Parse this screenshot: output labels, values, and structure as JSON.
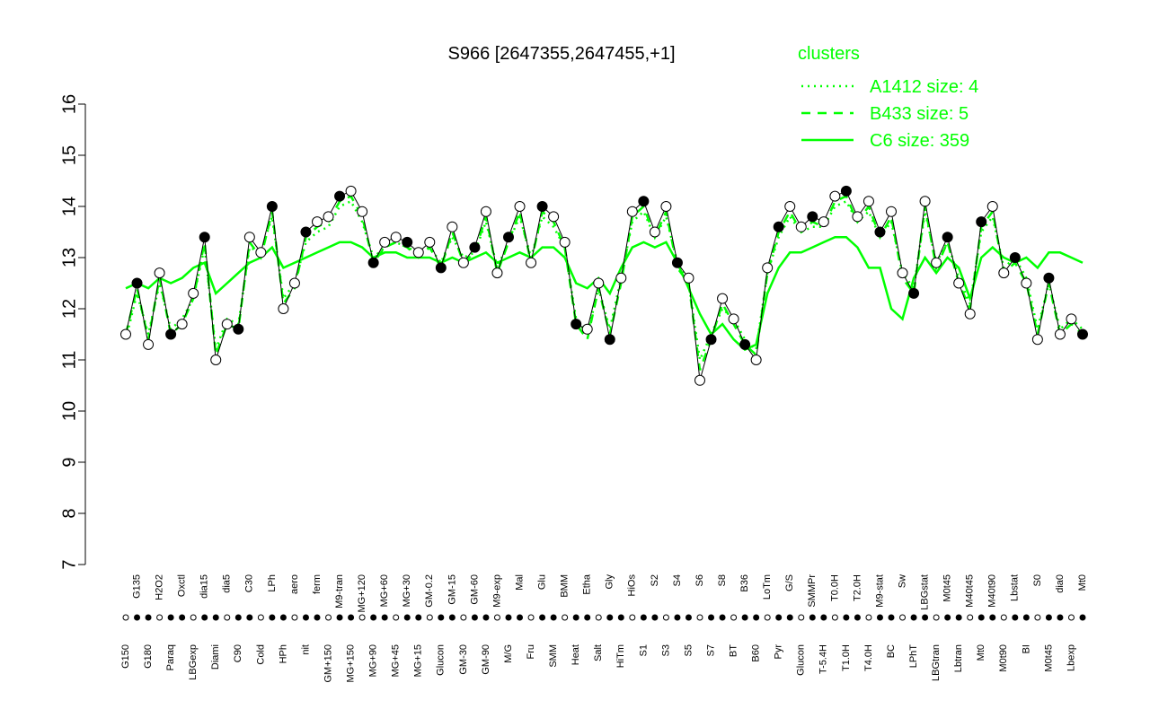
{
  "chart_data": {
    "type": "line",
    "title": "S966 [2647355,2647455,+1]",
    "legend_title": "clusters",
    "legend_color": "#00ff00",
    "ylim": [
      7,
      16
    ],
    "yticks": [
      7,
      8,
      9,
      10,
      11,
      12,
      13,
      14,
      15,
      16
    ],
    "categories": [
      "G150",
      "G135",
      "G180",
      "H2O2",
      "Paraq",
      "Oxctl",
      "LBGexp",
      "dia15",
      "Diami",
      "dia5",
      "C90",
      "C30",
      "Cold",
      "LPh",
      "HPh",
      "aero",
      "nit",
      "ferm",
      "GM+150",
      "M9-tran",
      "MG+150",
      "MG+120",
      "MG+90",
      "MG+60",
      "MG+45",
      "MG+30",
      "MG+15",
      "GM-0.2",
      "Glucon",
      "GM-15",
      "GM-30",
      "GM-60",
      "GM-90",
      "M9-exp",
      "M/G",
      "Mal",
      "Fru",
      "Glu",
      "SMM",
      "BMM",
      "Heat",
      "Etha",
      "Salt",
      "Gly",
      "HiTm",
      "HiOs",
      "S1",
      "S2",
      "S3",
      "S4",
      "S5",
      "S6",
      "S7",
      "S8",
      "BT",
      "B36",
      "B60",
      "LoTm",
      "Pyr",
      "G/S",
      "Glucon",
      "SMMPr",
      "T-5.4H",
      "T0.0H",
      "T1.0H",
      "T2.0H",
      "T4.0H",
      "M9-stat",
      "BC",
      "Sw",
      "LPhT",
      "LBGstat",
      "LBGtran",
      "M0t45",
      "Lbtran",
      "M40t45",
      "Mt0",
      "M40t90",
      "M0t90",
      "Lbstat",
      "BI",
      "S0",
      "M0t45",
      "dia0",
      "Lbexp",
      "Mt0"
    ],
    "values": [
      11.5,
      12.5,
      11.3,
      12.7,
      11.5,
      11.7,
      12.3,
      13.4,
      11.0,
      11.7,
      11.6,
      13.4,
      13.1,
      14.0,
      12.0,
      12.5,
      13.5,
      13.7,
      13.8,
      14.2,
      14.3,
      13.9,
      12.9,
      13.3,
      13.4,
      13.3,
      13.1,
      13.3,
      12.8,
      13.6,
      12.9,
      13.2,
      13.9,
      12.7,
      13.4,
      14.0,
      12.9,
      14.0,
      13.8,
      13.3,
      11.7,
      11.6,
      12.5,
      11.4,
      12.6,
      13.9,
      14.1,
      13.5,
      14.0,
      12.9,
      12.6,
      10.6,
      11.4,
      12.2,
      11.8,
      11.3,
      11.0,
      12.8,
      13.6,
      14.0,
      13.6,
      13.8,
      13.7,
      14.2,
      14.3,
      13.8,
      14.1,
      13.5,
      13.9,
      12.7,
      12.3,
      14.1,
      12.9,
      13.4,
      12.5,
      11.9,
      13.7,
      14.0,
      12.7,
      13.0,
      12.5,
      11.4,
      12.6,
      11.5,
      11.8,
      11.5
    ],
    "point_color": "#000000",
    "series": [
      {
        "name": "A1412 size: 4",
        "color": "#00ff00",
        "style": "dotted",
        "values": [
          11.4,
          12.3,
          11.5,
          12.5,
          11.6,
          11.8,
          12.2,
          13.2,
          11.2,
          11.8,
          11.7,
          13.2,
          13.1,
          13.8,
          12.2,
          12.5,
          13.3,
          13.5,
          13.6,
          14.0,
          14.1,
          13.7,
          13.0,
          13.2,
          13.3,
          13.2,
          13.1,
          13.2,
          12.9,
          13.4,
          13.0,
          13.1,
          13.7,
          12.8,
          13.3,
          13.8,
          13.0,
          13.8,
          13.6,
          13.2,
          11.8,
          11.5,
          12.4,
          11.6,
          12.6,
          13.7,
          13.9,
          13.4,
          13.8,
          12.9,
          12.5,
          11.0,
          11.5,
          12.0,
          11.8,
          11.4,
          11.2,
          12.7,
          13.4,
          13.8,
          13.5,
          13.6,
          13.6,
          14.0,
          14.1,
          13.7,
          13.9,
          13.4,
          13.7,
          12.7,
          12.4,
          13.9,
          12.9,
          13.3,
          12.6,
          12.1,
          13.5,
          13.8,
          12.8,
          13.0,
          12.6,
          11.6,
          12.5,
          11.6,
          11.8,
          11.6
        ]
      },
      {
        "name": "B433 size: 5",
        "color": "#00ff00",
        "style": "dashed",
        "values": [
          11.5,
          12.4,
          11.4,
          12.6,
          11.5,
          11.7,
          12.2,
          13.3,
          11.1,
          11.7,
          11.6,
          13.3,
          13.0,
          13.9,
          12.1,
          12.4,
          13.4,
          13.6,
          13.7,
          14.1,
          14.2,
          13.8,
          12.9,
          13.2,
          13.3,
          13.2,
          13.0,
          13.2,
          12.8,
          13.5,
          12.9,
          13.1,
          13.8,
          12.7,
          13.3,
          13.9,
          12.9,
          13.9,
          13.7,
          13.2,
          11.7,
          11.4,
          12.4,
          11.5,
          12.5,
          13.8,
          14.0,
          13.4,
          13.9,
          12.8,
          12.5,
          10.8,
          11.4,
          12.1,
          11.7,
          11.3,
          11.1,
          12.7,
          13.5,
          13.9,
          13.5,
          13.7,
          13.6,
          14.1,
          14.2,
          13.7,
          14.0,
          13.4,
          13.8,
          12.6,
          12.3,
          14.0,
          12.8,
          13.3,
          12.5,
          12.0,
          13.6,
          13.9,
          12.7,
          12.9,
          12.5,
          11.5,
          12.5,
          11.5,
          11.7,
          11.5
        ]
      },
      {
        "name": "C6 size: 359",
        "color": "#00ff00",
        "style": "solid",
        "values": [
          12.4,
          12.5,
          12.4,
          12.6,
          12.5,
          12.6,
          12.8,
          12.9,
          12.3,
          12.5,
          12.7,
          12.9,
          13.0,
          13.2,
          12.8,
          12.9,
          13.0,
          13.1,
          13.2,
          13.3,
          13.3,
          13.2,
          13.0,
          13.1,
          13.1,
          13.0,
          13.0,
          13.0,
          12.9,
          13.0,
          12.9,
          13.0,
          13.1,
          12.9,
          13.0,
          13.1,
          13.0,
          13.2,
          13.2,
          13.0,
          12.5,
          12.4,
          12.6,
          12.3,
          12.8,
          13.2,
          13.3,
          13.2,
          13.3,
          12.9,
          12.4,
          11.9,
          11.5,
          11.7,
          11.4,
          11.2,
          11.3,
          12.3,
          12.8,
          13.1,
          13.1,
          13.2,
          13.3,
          13.4,
          13.4,
          13.2,
          12.8,
          12.8,
          12.0,
          11.8,
          12.6,
          13.0,
          12.7,
          13.0,
          12.8,
          12.2,
          13.0,
          13.2,
          13.0,
          12.9,
          13.0,
          12.8,
          13.1,
          13.1,
          13.0,
          12.9
        ]
      }
    ]
  }
}
